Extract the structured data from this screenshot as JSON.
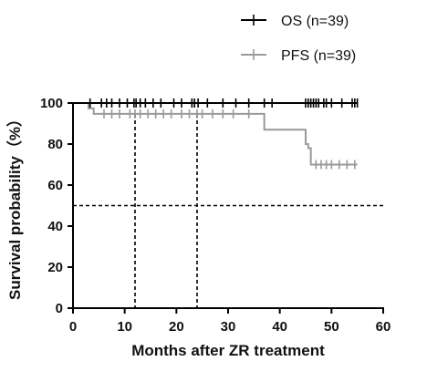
{
  "chart_data": {
    "type": "line",
    "title": "",
    "xlabel": "Months after ZR treatment",
    "ylabel": "Survival probability（%）",
    "xlim": [
      0,
      60
    ],
    "ylim": [
      0,
      100
    ],
    "xticks": [
      "0",
      "10",
      "20",
      "30",
      "40",
      "50",
      "60"
    ],
    "yticks": [
      "0",
      "20",
      "40",
      "60",
      "80",
      "100"
    ],
    "legend_position": "top-right",
    "grid": false,
    "series": [
      {
        "name": "OS (n=39)",
        "color": "#000000",
        "step_x": [
          0,
          55
        ],
        "step_y": [
          100,
          100
        ],
        "censor_x": [
          3.3,
          5.5,
          6.5,
          7.5,
          9,
          10.5,
          11.8,
          12.2,
          13,
          14,
          15.5,
          17,
          19.5,
          21,
          23,
          23.5,
          24.2,
          26,
          29,
          31.5,
          34,
          37,
          38.5,
          45,
          45.5,
          46,
          46.5,
          47,
          47.5,
          48.5,
          49,
          50,
          52,
          54,
          54.5,
          55
        ]
      },
      {
        "name": "PFS (n=39)",
        "color": "#9a9a9a",
        "step_x": [
          0,
          3,
          4,
          37,
          45,
          45.5,
          46,
          55
        ],
        "step_y": [
          100,
          97.4,
          94.7,
          87,
          80,
          78,
          70,
          70
        ],
        "censor_x": [
          6,
          7.5,
          9,
          11,
          12,
          13,
          14.5,
          16,
          17.5,
          19,
          21,
          22.5,
          24,
          25,
          27,
          29,
          31,
          34,
          47,
          48,
          49,
          50,
          51.5,
          53,
          54.5
        ]
      }
    ],
    "reference_lines": {
      "horizontal_y": 50,
      "vertical_x": [
        12,
        24
      ]
    }
  }
}
